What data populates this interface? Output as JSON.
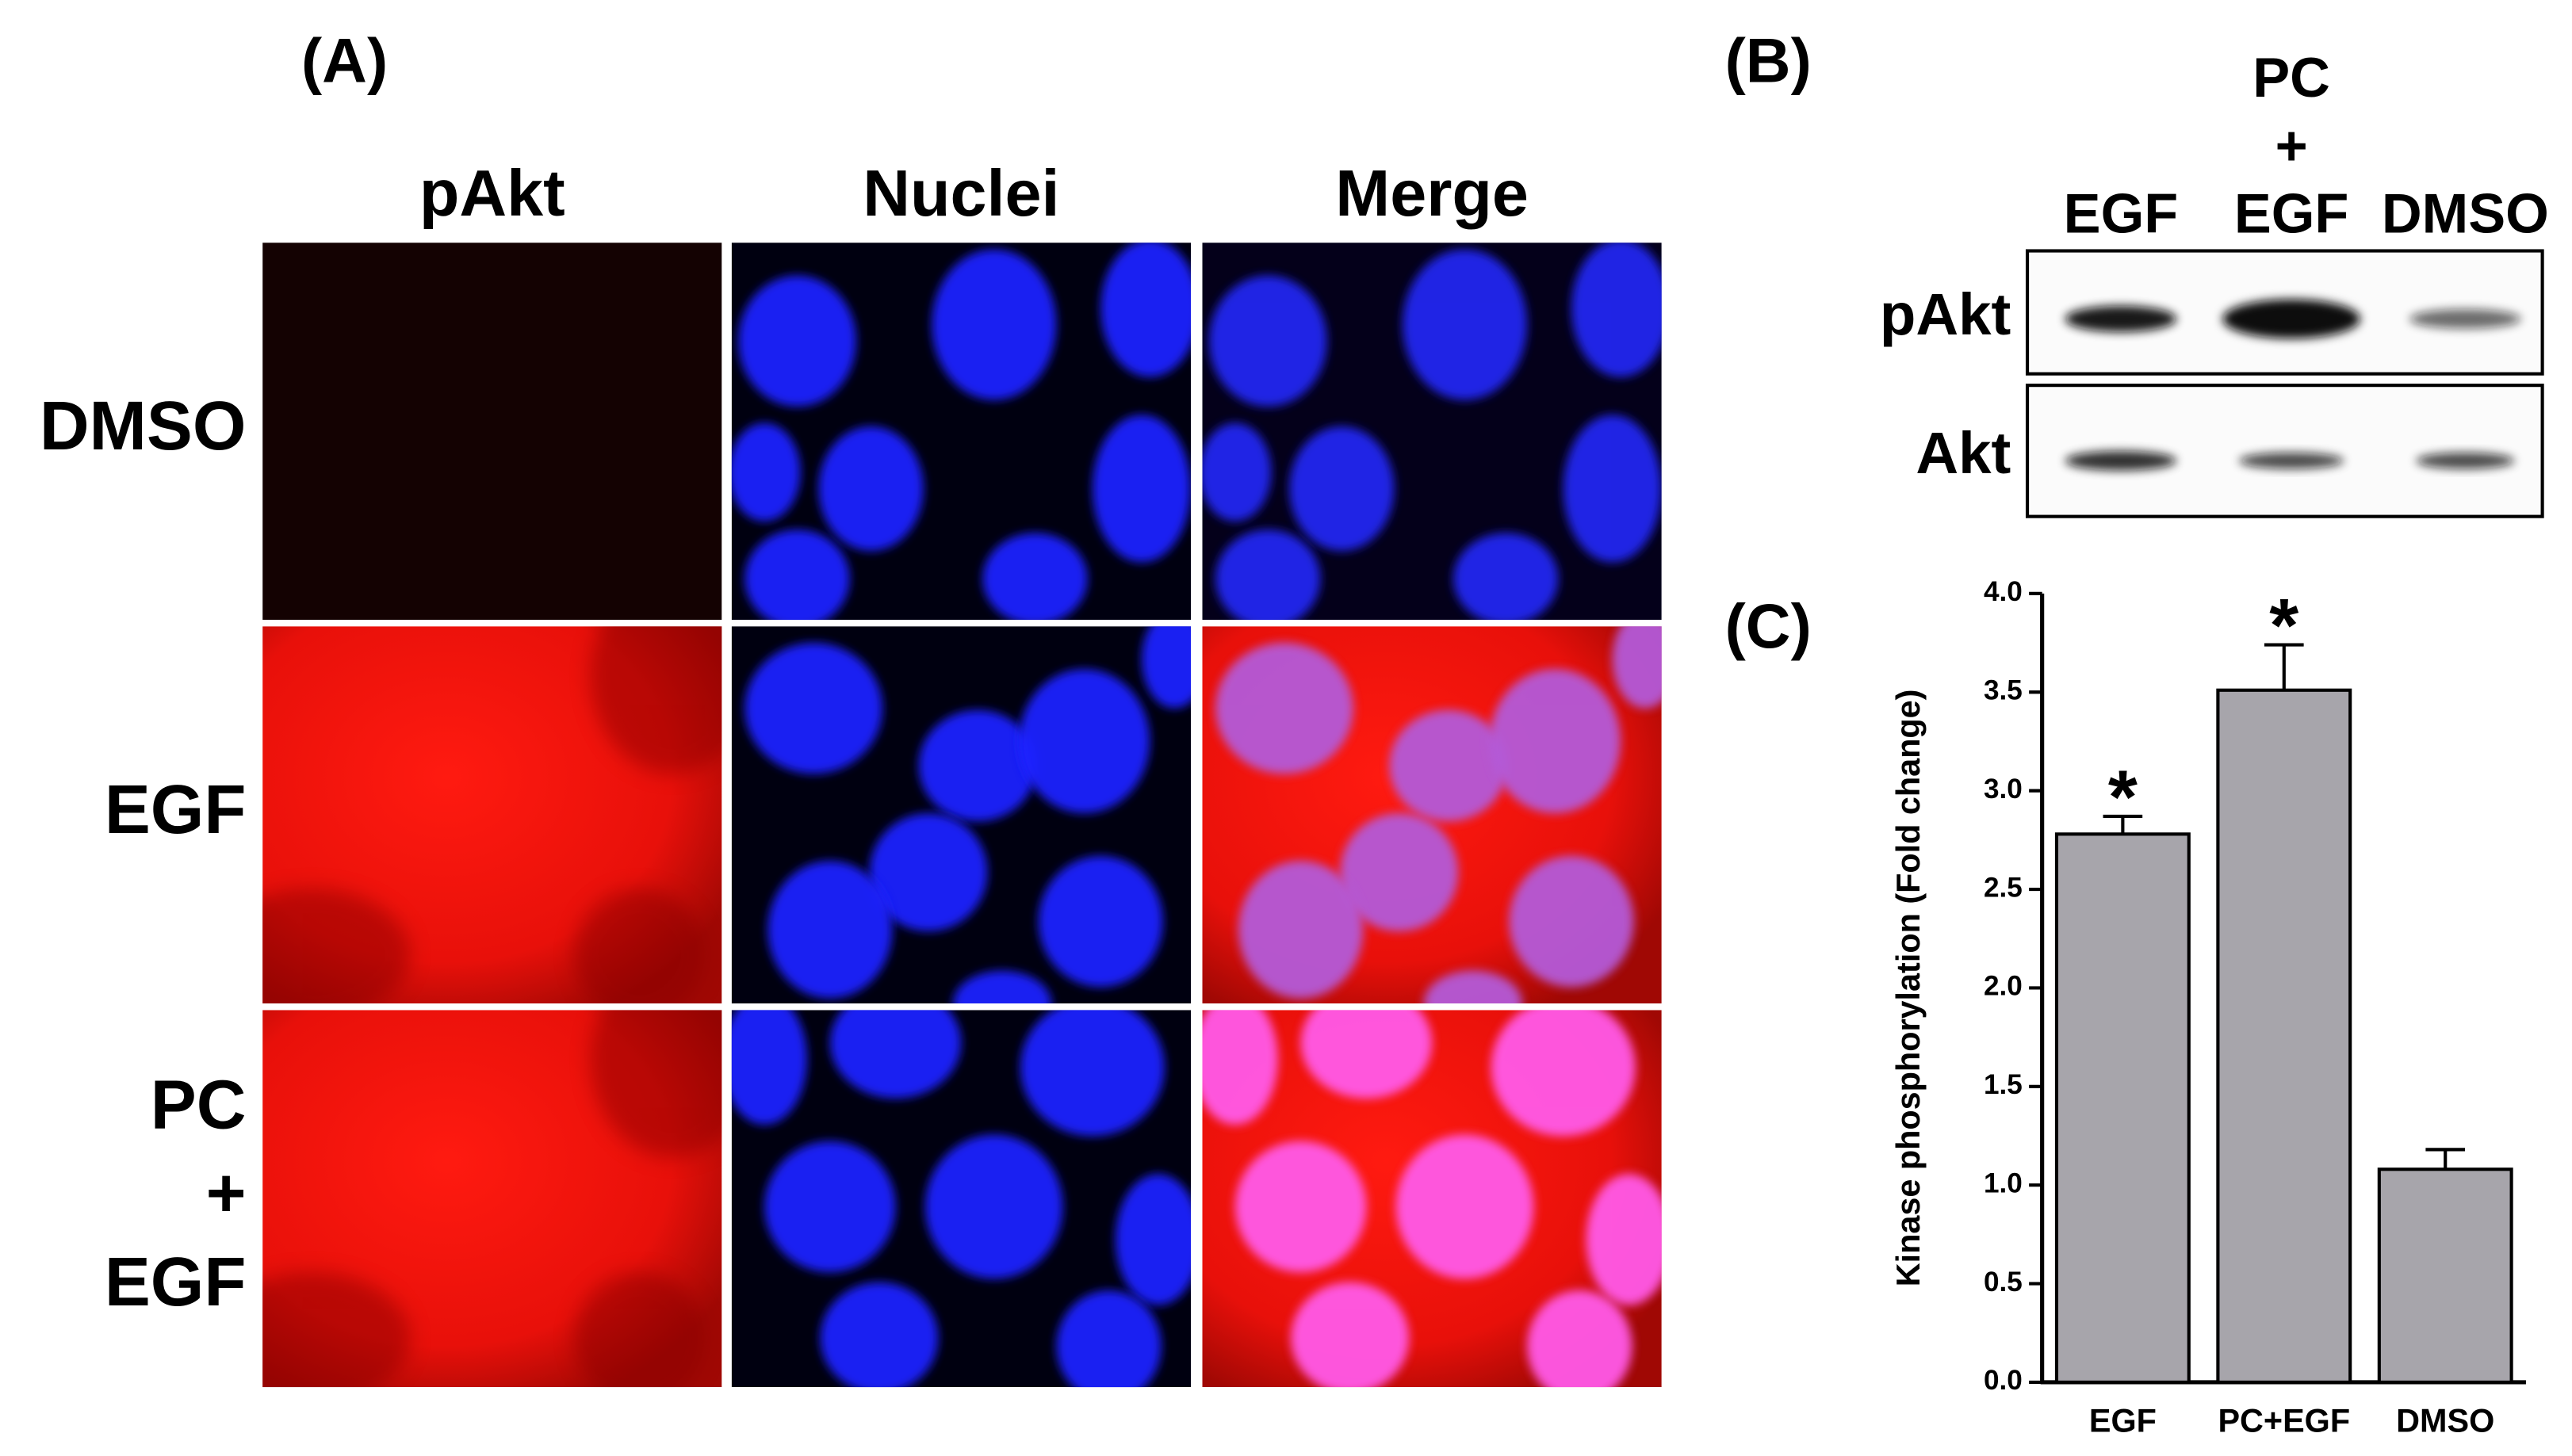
{
  "panel_a": {
    "label": "(A)",
    "columns": [
      "pAkt",
      "Nuclei",
      "Merge"
    ],
    "rows": [
      [
        "DMSO"
      ],
      [
        "EGF"
      ],
      [
        "PC",
        "+",
        "EGF"
      ]
    ]
  },
  "panel_b": {
    "label": "(B)",
    "columns": [
      [
        "EGF"
      ],
      [
        "PC",
        "+",
        "EGF"
      ],
      [
        "DMSO"
      ]
    ],
    "rows": [
      "pAkt",
      "Akt"
    ]
  },
  "chart_data": {
    "type": "bar",
    "panel_label": "(C)",
    "ylabel": "Kinase phosphorylation (Fold change)",
    "categories": [
      "EGF",
      "PC+EGF",
      "DMSO"
    ],
    "values": [
      2.78,
      3.51,
      1.08
    ],
    "errors": [
      0.09,
      0.23,
      0.1
    ],
    "markers": [
      "*",
      "*",
      null
    ],
    "color": "#a7a5ab",
    "ylim": [
      0,
      4
    ],
    "yticks": [
      {
        "value": 0,
        "label": "0.0"
      },
      0.5,
      {
        "value": 1,
        "label": "1.0"
      },
      1.5,
      {
        "value": 2,
        "label": "2.0"
      },
      2.5,
      {
        "value": 3,
        "label": "3.0"
      },
      3.5,
      {
        "value": 4,
        "label": "4.0"
      }
    ]
  }
}
